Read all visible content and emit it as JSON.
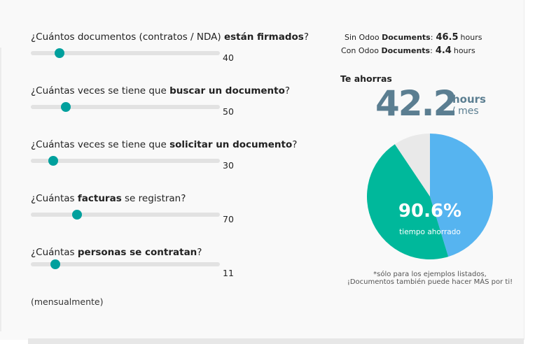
{
  "questions": [
    {
      "pre": "¿Cuántos documentos (contratos / NDA) ",
      "bold": "están firmados",
      "post": "?",
      "value": "40",
      "fraction": 0.15
    },
    {
      "pre": "¿Cuántas veces se tiene que ",
      "bold": "buscar un documento",
      "post": "?",
      "value": "50",
      "fraction": 0.185
    },
    {
      "pre": "¿Cuántas veces se tiene que ",
      "bold": "solicitar un documento",
      "post": "?",
      "value": "30",
      "fraction": 0.12
    },
    {
      "pre": "¿Cuántas ",
      "bold": "facturas",
      "post": " se registran?",
      "value": "70",
      "fraction": 0.245
    },
    {
      "pre": "¿Cuántas ",
      "bold": "personas se contratan",
      "post": "?",
      "value": "11",
      "fraction": 0.13
    }
  ],
  "footnote_left": "(mensualmente)",
  "comparison": {
    "without": {
      "prefix": "Sin Odoo ",
      "bold": "Documents",
      "colon": ":",
      "value": "46.5",
      "unit": "hours"
    },
    "with": {
      "prefix": "Con Odoo ",
      "bold": "Documents",
      "colon": ":",
      "value": "4.4",
      "unit": "hours"
    }
  },
  "savings": {
    "title": "Te ahorras",
    "value": "42.2",
    "unit": "hours",
    "per": "/ mes"
  },
  "pie": {
    "percent_label": "90.6%",
    "percent_value": 90.6,
    "subtitle": "tiempo ahorrado",
    "colors": {
      "saved_a": "#00b89b",
      "saved_b": "#56b4f0",
      "remaining": "#e9e9e9"
    }
  },
  "note": {
    "line1": "*sólo para los ejemplos listados,",
    "line2": "¡Documentos también puede hacer MÁS por ti!"
  }
}
